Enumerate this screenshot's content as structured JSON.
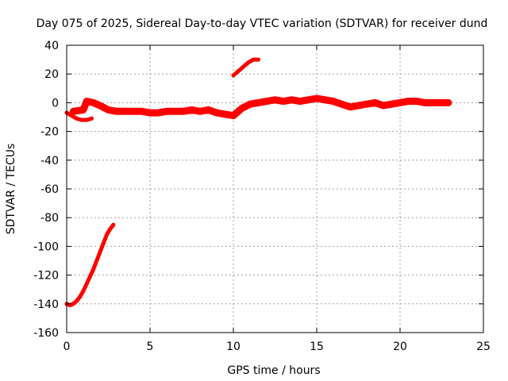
{
  "chart_data": {
    "type": "scatter",
    "title": "Day 075 of 2025, Sidereal Day-to-day VTEC variation (SDTVAR) for receiver dund",
    "xlabel": "GPS time / hours",
    "ylabel": "SDTVAR / TECUs",
    "xlim": [
      0,
      25
    ],
    "ylim": [
      -160,
      40
    ],
    "xticks": [
      0,
      5,
      10,
      15,
      20,
      25
    ],
    "yticks": [
      -160,
      -140,
      -120,
      -100,
      -80,
      -60,
      -40,
      -20,
      0,
      20,
      40
    ],
    "grid": true,
    "series_color": "#ff0000",
    "series": [
      {
        "name": "SDTVAR-early-curve",
        "x": [
          0.0,
          0.2,
          0.4,
          0.6,
          0.8,
          1.0,
          1.2,
          1.4,
          1.6,
          1.8,
          2.0,
          2.2,
          2.4,
          2.6,
          2.8
        ],
        "y": [
          -140,
          -141,
          -140,
          -138,
          -135,
          -131,
          -126,
          -121,
          -116,
          -110,
          -104,
          -98,
          -92,
          -88,
          -85
        ]
      },
      {
        "name": "SDTVAR-band-early",
        "x": [
          0.0,
          0.3,
          0.6,
          0.9,
          1.2,
          1.5
        ],
        "y": [
          -7,
          -9,
          -11,
          -12,
          -12,
          -11
        ]
      },
      {
        "name": "SDTVAR-band-main",
        "x": [
          0.4,
          1.0,
          1.2,
          1.6,
          2.0,
          2.5,
          3.0,
          3.5,
          4.0,
          4.5,
          5.0,
          5.5,
          6.0,
          6.5,
          7.0,
          7.5,
          8.0,
          8.5,
          9.0,
          9.5,
          10.0,
          10.5,
          11.0,
          11.5,
          12.0,
          12.5,
          13.0,
          13.5,
          14.0,
          14.5,
          15.0,
          15.5,
          16.0,
          16.5,
          17.0,
          17.5,
          18.0,
          18.5,
          19.0,
          19.5,
          20.0,
          20.5,
          21.0,
          21.5,
          22.0,
          22.5,
          22.9
        ],
        "y": [
          -6,
          -5,
          1,
          0,
          -2,
          -5,
          -6,
          -6,
          -6,
          -6,
          -7,
          -7,
          -6,
          -6,
          -6,
          -5,
          -6,
          -5,
          -7,
          -8,
          -9,
          -4,
          -1,
          0,
          1,
          2,
          1,
          2,
          1,
          2,
          3,
          2,
          1,
          -1,
          -3,
          -2,
          -1,
          0,
          -2,
          -1,
          0,
          1,
          1,
          0,
          0,
          0,
          0
        ]
      },
      {
        "name": "SDTVAR-upper-segment",
        "x": [
          10.0,
          10.3,
          10.6,
          10.9,
          11.2,
          11.5
        ],
        "y": [
          19,
          22,
          25,
          28,
          30,
          30
        ]
      }
    ]
  }
}
